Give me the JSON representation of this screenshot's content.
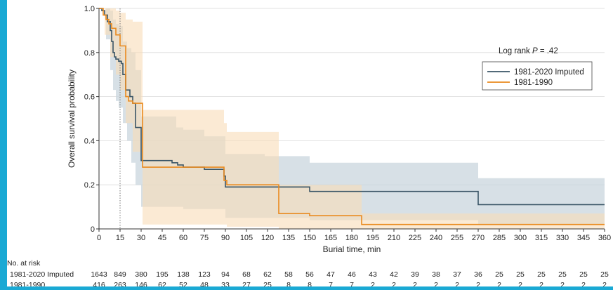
{
  "chart_data": {
    "type": "line",
    "subtype": "kaplan-meier survival curve with confidence bands",
    "title": "",
    "xlabel": "Burial time, min",
    "ylabel": "Overall survival probability",
    "xlim": [
      0,
      360
    ],
    "ylim": [
      0,
      1.0
    ],
    "xticks": [
      0,
      15,
      30,
      45,
      60,
      75,
      90,
      105,
      120,
      135,
      150,
      165,
      180,
      195,
      210,
      225,
      240,
      255,
      270,
      285,
      300,
      315,
      330,
      345,
      360
    ],
    "yticks": [
      "0",
      "0.2",
      "0.4",
      "0.6",
      "0.8",
      "1.0"
    ],
    "reference_line_x": 15,
    "annotation": "Log rank P = .42",
    "annotation_parts": {
      "prefix": "Log rank ",
      "italic": "P",
      "suffix": " = .42"
    },
    "legend_position": "top-right",
    "series": [
      {
        "name": "1981-2020 Imputed",
        "color": "#3a5566",
        "band_color": "#c9d6dd",
        "steps": [
          [
            0,
            1.0
          ],
          [
            2,
            0.99
          ],
          [
            4,
            0.97
          ],
          [
            6,
            0.94
          ],
          [
            8,
            0.9
          ],
          [
            9,
            0.85
          ],
          [
            10,
            0.8
          ],
          [
            11,
            0.78
          ],
          [
            12,
            0.77
          ],
          [
            14,
            0.76
          ],
          [
            16,
            0.75
          ],
          [
            17,
            0.7
          ],
          [
            19,
            0.63
          ],
          [
            22,
            0.6
          ],
          [
            24,
            0.57
          ],
          [
            26,
            0.46
          ],
          [
            30,
            0.31
          ],
          [
            52,
            0.3
          ],
          [
            56,
            0.29
          ],
          [
            60,
            0.28
          ],
          [
            75,
            0.27
          ],
          [
            89,
            0.24
          ],
          [
            90,
            0.19
          ],
          [
            117,
            0.19
          ],
          [
            150,
            0.17
          ],
          [
            240,
            0.17
          ],
          [
            269,
            0.17
          ],
          [
            270,
            0.11
          ],
          [
            360,
            0.11
          ]
        ],
        "band": [
          [
            0,
            1.0,
            1.0
          ],
          [
            5,
            0.86,
            1.0
          ],
          [
            8,
            0.72,
            0.99
          ],
          [
            10,
            0.63,
            0.95
          ],
          [
            12,
            0.58,
            0.93
          ],
          [
            14,
            0.55,
            0.92
          ],
          [
            17,
            0.48,
            0.85
          ],
          [
            20,
            0.4,
            0.82
          ],
          [
            23,
            0.3,
            0.8
          ],
          [
            26,
            0.2,
            0.72
          ],
          [
            30,
            0.1,
            0.51
          ],
          [
            55,
            0.1,
            0.46
          ],
          [
            60,
            0.09,
            0.45
          ],
          [
            75,
            0.09,
            0.42
          ],
          [
            90,
            0.05,
            0.34
          ],
          [
            118,
            0.05,
            0.33
          ],
          [
            150,
            0.04,
            0.3
          ],
          [
            269,
            0.04,
            0.3
          ],
          [
            270,
            0.02,
            0.23
          ],
          [
            360,
            0.02,
            0.23
          ]
        ]
      },
      {
        "name": "1981-1990",
        "color": "#e98a1e",
        "band_color": "#f9dcb8",
        "steps": [
          [
            0,
            1.0
          ],
          [
            3,
            0.97
          ],
          [
            5,
            0.95
          ],
          [
            7,
            0.93
          ],
          [
            9,
            0.91
          ],
          [
            12,
            0.88
          ],
          [
            15,
            0.83
          ],
          [
            19,
            0.6
          ],
          [
            21,
            0.58
          ],
          [
            24,
            0.57
          ],
          [
            31,
            0.28
          ],
          [
            88,
            0.28
          ],
          [
            89,
            0.22
          ],
          [
            91,
            0.2
          ],
          [
            127,
            0.2
          ],
          [
            128,
            0.07
          ],
          [
            150,
            0.06
          ],
          [
            151,
            0.06
          ],
          [
            186,
            0.06
          ],
          [
            187,
            0.02
          ],
          [
            360,
            0.02
          ]
        ],
        "band": [
          [
            0,
            1.0,
            1.0
          ],
          [
            4,
            0.88,
            1.0
          ],
          [
            8,
            0.78,
            1.0
          ],
          [
            12,
            0.7,
            0.99
          ],
          [
            15,
            0.63,
            0.98
          ],
          [
            19,
            0.48,
            0.95
          ],
          [
            24,
            0.35,
            0.94
          ],
          [
            31,
            0.02,
            0.54
          ],
          [
            88,
            0.02,
            0.54
          ],
          [
            89,
            0.02,
            0.48
          ],
          [
            91,
            0.01,
            0.44
          ],
          [
            127,
            0.01,
            0.44
          ],
          [
            128,
            0.0,
            0.2
          ],
          [
            186,
            0.0,
            0.2
          ],
          [
            187,
            0.0,
            0.07
          ],
          [
            360,
            0.0,
            0.07
          ]
        ]
      }
    ]
  },
  "risk_table": {
    "title": "No. at risk",
    "rows": [
      {
        "label": "1981-2020 Imputed",
        "values": [
          "1643",
          "849",
          "380",
          "195",
          "138",
          "123",
          "94",
          "68",
          "62",
          "58",
          "56",
          "47",
          "46",
          "43",
          "42",
          "39",
          "38",
          "37",
          "36",
          "25",
          "25",
          "25",
          "25",
          "25",
          "25"
        ]
      },
      {
        "label": "1981-1990",
        "values": [
          "416",
          "263",
          "146",
          "62",
          "52",
          "48",
          "33",
          "27",
          "25",
          "8",
          "8",
          "7",
          "7",
          "2",
          "2",
          "2",
          "2",
          "2",
          "2",
          "2",
          "2",
          "2",
          "2",
          "2",
          "2"
        ]
      }
    ]
  }
}
